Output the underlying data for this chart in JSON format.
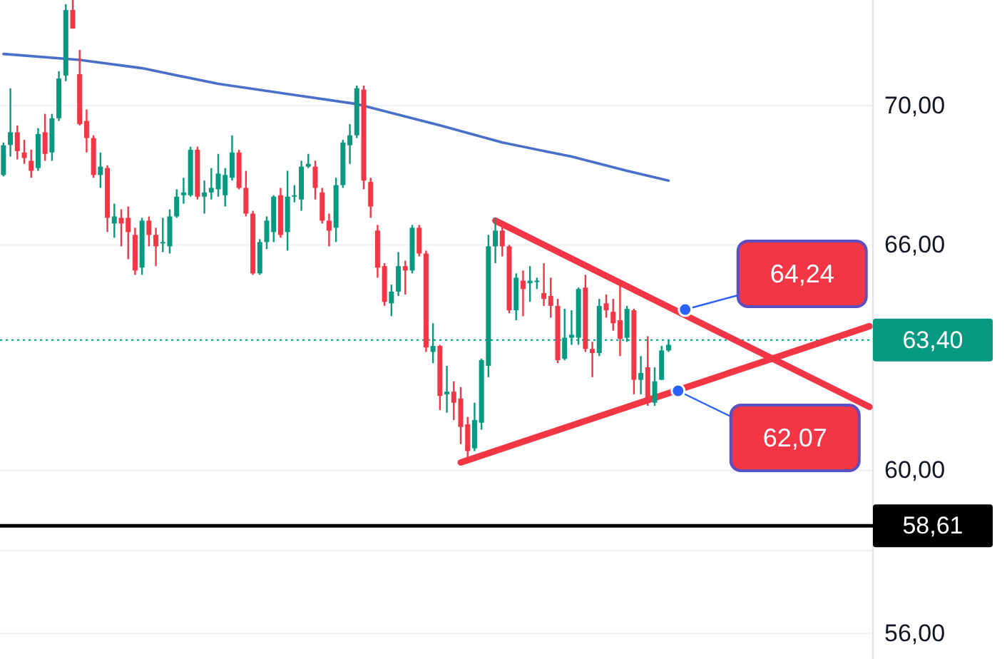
{
  "chart_data": {
    "type": "candlestick",
    "log": true,
    "grid": "y",
    "tick_labels": "y",
    "categories": [
      null,
      null,
      null,
      null,
      null,
      null,
      null,
      null,
      null,
      null,
      null,
      null,
      null,
      null,
      null,
      null,
      null,
      null,
      null,
      null,
      null,
      null,
      null,
      null,
      null,
      null,
      null,
      null,
      null,
      null,
      null,
      null,
      null,
      null,
      null,
      null,
      null,
      null,
      null,
      null,
      null,
      null,
      null,
      null,
      null,
      null,
      null,
      null,
      null,
      null,
      null,
      null,
      null,
      null,
      null,
      null,
      null,
      null,
      null,
      null,
      null,
      null,
      null,
      null,
      null,
      null,
      null,
      null,
      null,
      null,
      null,
      null,
      null,
      null,
      null,
      null,
      null,
      null,
      null,
      null,
      null,
      null,
      null,
      null,
      null,
      null,
      null,
      null,
      null,
      null,
      null,
      null,
      null,
      null,
      null,
      null,
      null,
      null,
      null,
      null,
      null,
      null,
      null,
      null,
      null,
      null,
      null,
      null,
      null,
      null,
      null,
      null,
      null,
      null,
      null,
      null,
      null,
      null,
      null,
      null,
      null,
      null,
      null,
      null,
      null,
      null
    ],
    "ylim": [
      55.4,
      73.2
    ],
    "yticks": [
      {
        "value": 56,
        "label": "56,00"
      },
      {
        "value": 58,
        "label": null
      },
      {
        "value": 60,
        "label": "60,00"
      },
      {
        "value": 66,
        "label": "66,00"
      },
      {
        "value": 70,
        "label": "70,00"
      }
    ],
    "ohlc": [
      [
        67.98,
        68.92,
        67.94,
        68.84
      ],
      [
        68.85,
        70.52,
        68.51,
        69.22
      ],
      [
        69.22,
        69.42,
        68.43,
        68.67
      ],
      [
        68.63,
        69.0,
        68.3,
        68.47
      ],
      [
        68.39,
        68.71,
        67.9,
        68.1
      ],
      [
        68.18,
        69.34,
        68.1,
        69.17
      ],
      [
        69.22,
        69.76,
        68.39,
        68.59
      ],
      [
        68.63,
        69.76,
        68.39,
        69.63
      ],
      [
        69.63,
        71.03,
        69.55,
        70.81
      ],
      [
        70.9,
        73.07,
        70.73,
        72.89
      ],
      [
        72.89,
        73.2,
        72.32,
        72.32
      ],
      [
        70.94,
        71.67,
        69.42,
        69.46
      ],
      [
        69.55,
        69.89,
        68.63,
        69.05
      ],
      [
        69.05,
        69.13,
        67.9,
        67.98
      ],
      [
        67.98,
        68.63,
        67.61,
        68.22
      ],
      [
        68.18,
        68.26,
        66.36,
        66.76
      ],
      [
        66.6,
        67.16,
        66.2,
        66.8
      ],
      [
        66.76,
        67.0,
        65.96,
        66.6
      ],
      [
        66.76,
        67.08,
        65.6,
        66.36
      ],
      [
        66.28,
        66.48,
        65.17,
        65.29
      ],
      [
        65.37,
        66.76,
        65.17,
        66.68
      ],
      [
        66.68,
        66.8,
        65.96,
        66.28
      ],
      [
        66.28,
        66.48,
        65.41,
        65.96
      ],
      [
        66.04,
        66.76,
        65.8,
        66.08
      ],
      [
        65.96,
        67.0,
        65.76,
        66.8
      ],
      [
        66.8,
        67.57,
        66.76,
        67.36
      ],
      [
        67.4,
        67.9,
        67.16,
        67.48
      ],
      [
        67.4,
        68.8,
        67.36,
        68.71
      ],
      [
        68.71,
        68.8,
        67.28,
        67.36
      ],
      [
        67.36,
        67.82,
        66.88,
        67.48
      ],
      [
        67.48,
        68.18,
        67.28,
        67.61
      ],
      [
        67.57,
        68.59,
        67.36,
        68.02
      ],
      [
        67.4,
        68.18,
        67.08,
        67.98
      ],
      [
        67.9,
        69.13,
        67.82,
        68.63
      ],
      [
        68.63,
        68.71,
        67.57,
        67.61
      ],
      [
        67.61,
        68.1,
        66.8,
        66.88
      ],
      [
        66.88,
        66.96,
        65.17,
        65.21
      ],
      [
        65.21,
        66.16,
        65.17,
        66.08
      ],
      [
        66.08,
        66.8,
        65.88,
        66.68
      ],
      [
        66.36,
        67.4,
        66.08,
        67.36
      ],
      [
        67.4,
        67.61,
        66.2,
        66.28
      ],
      [
        66.36,
        68.1,
        65.84,
        67.36
      ],
      [
        67.36,
        67.69,
        67.2,
        67.4
      ],
      [
        67.28,
        68.39,
        66.96,
        68.22
      ],
      [
        68.22,
        68.59,
        68.18,
        68.3
      ],
      [
        68.22,
        68.39,
        67.28,
        67.61
      ],
      [
        67.48,
        67.61,
        66.6,
        66.68
      ],
      [
        66.68,
        66.88,
        65.96,
        66.4
      ],
      [
        66.48,
        67.9,
        66.08,
        67.69
      ],
      [
        67.69,
        69.0,
        67.61,
        68.92
      ],
      [
        68.84,
        69.46,
        68.3,
        69.13
      ],
      [
        69.13,
        70.6,
        69.05,
        70.52
      ],
      [
        70.48,
        70.6,
        67.57,
        67.82
      ],
      [
        67.78,
        67.9,
        66.76,
        67.08
      ],
      [
        66.4,
        66.56,
        65.09,
        65.37
      ],
      [
        65.41,
        65.49,
        64.32,
        64.43
      ],
      [
        64.39,
        64.9,
        64.04,
        64.71
      ],
      [
        64.71,
        65.8,
        64.59,
        65.41
      ],
      [
        65.41,
        65.56,
        64.63,
        65.29
      ],
      [
        65.29,
        66.56,
        65.21,
        66.48
      ],
      [
        66.48,
        66.56,
        65.68,
        65.76
      ],
      [
        65.76,
        65.84,
        63.08,
        63.2
      ],
      [
        63.08,
        63.85,
        62.78,
        63.24
      ],
      [
        63.24,
        63.27,
        61.55,
        61.92
      ],
      [
        61.96,
        62.71,
        61.48,
        62.03
      ],
      [
        62.03,
        62.3,
        61.29,
        61.74
      ],
      [
        61.85,
        62.15,
        60.67,
        61.11
      ],
      [
        61.18,
        61.37,
        60.2,
        60.49
      ],
      [
        60.56,
        61.74,
        60.49,
        61.29
      ],
      [
        61.22,
        62.9,
        61.04,
        62.86
      ],
      [
        62.71,
        66.28,
        62.41,
        65.96
      ],
      [
        65.96,
        66.76,
        65.49,
        66.4
      ],
      [
        66.4,
        66.6,
        65.68,
        65.96
      ],
      [
        65.96,
        66.0,
        64.12,
        64.2
      ],
      [
        64.2,
        65.21,
        63.93,
        65.09
      ],
      [
        65.01,
        65.29,
        64.04,
        64.78
      ],
      [
        64.94,
        65.41,
        64.43,
        65.01
      ],
      [
        64.98,
        65.09,
        64.78,
        65.01
      ],
      [
        64.67,
        65.49,
        64.32,
        64.51
      ],
      [
        64.59,
        65.09,
        64.0,
        64.32
      ],
      [
        64.32,
        64.51,
        62.78,
        62.86
      ],
      [
        62.9,
        64.24,
        62.86,
        63.46
      ],
      [
        63.46,
        64.2,
        63.27,
        63.54
      ],
      [
        63.46,
        64.82,
        63.27,
        64.78
      ],
      [
        64.82,
        65.17,
        63.08,
        63.16
      ],
      [
        63.16,
        63.35,
        62.41,
        63.05
      ],
      [
        63.05,
        64.51,
        62.97,
        64.32
      ],
      [
        64.39,
        64.63,
        64.0,
        64.2
      ],
      [
        64.16,
        64.51,
        63.65,
        63.85
      ],
      [
        63.93,
        64.9,
        62.97,
        63.43
      ],
      [
        63.46,
        64.32,
        63.35,
        64.24
      ],
      [
        64.2,
        64.24,
        61.96,
        62.34
      ],
      [
        62.34,
        62.97,
        61.96,
        62.52
      ],
      [
        62.67,
        63.5,
        61.66,
        61.74
      ],
      [
        61.74,
        62.67,
        61.66,
        62.3
      ],
      [
        62.34,
        63.24,
        62.34,
        63.12
      ],
      [
        63.12,
        63.39,
        63.08,
        63.27
      ],
      null,
      null,
      null,
      null,
      null,
      null,
      null,
      null,
      null,
      null,
      null,
      null,
      null,
      null,
      null,
      null,
      null,
      null,
      null,
      null,
      null,
      null,
      null,
      null,
      null,
      null,
      null,
      null,
      null
    ],
    "series": [
      {
        "type": "line",
        "color": "#4a6fc9",
        "values": [
          71.55,
          null,
          null,
          null,
          null,
          null,
          null,
          null,
          null,
          null,
          null,
          71.37,
          null,
          null,
          null,
          null,
          null,
          null,
          null,
          null,
          71.12,
          null,
          null,
          null,
          null,
          null,
          null,
          null,
          null,
          null,
          null,
          70.65,
          null,
          null,
          null,
          null,
          null,
          null,
          null,
          null,
          null,
          70.35,
          null,
          null,
          null,
          null,
          null,
          null,
          null,
          null,
          null,
          70.05,
          null,
          null,
          null,
          null,
          null,
          null,
          null,
          null,
          null,
          null,
          null,
          69.42,
          null,
          null,
          null,
          null,
          null,
          null,
          null,
          null,
          68.92,
          null,
          null,
          null,
          null,
          null,
          null,
          null,
          null,
          null,
          68.51,
          null,
          null,
          null,
          null,
          null,
          null,
          null,
          68.1,
          null,
          null,
          null,
          null,
          null,
          67.82,
          null,
          null,
          null,
          null,
          null,
          null,
          null,
          null,
          null,
          null,
          null,
          null,
          null,
          null,
          null,
          null,
          null,
          null,
          null,
          null,
          null,
          null,
          null,
          null,
          null,
          null,
          null,
          null,
          null
        ]
      },
      {
        "type": "line",
        "color": "#f23645",
        "values": [
          null,
          null,
          null,
          null,
          null,
          null,
          null,
          null,
          null,
          null,
          null,
          null,
          null,
          null,
          null,
          null,
          null,
          null,
          null,
          null,
          null,
          null,
          null,
          null,
          null,
          null,
          null,
          null,
          null,
          null,
          null,
          null,
          null,
          null,
          null,
          null,
          null,
          null,
          null,
          null,
          null,
          null,
          null,
          null,
          null,
          null,
          null,
          null,
          null,
          null,
          null,
          null,
          null,
          null,
          null,
          null,
          null,
          null,
          null,
          null,
          null,
          null,
          null,
          null,
          null,
          null,
          null,
          null,
          null,
          null,
          null,
          66.68,
          null,
          null,
          null,
          null,
          null,
          null,
          null,
          null,
          null,
          null,
          null,
          null,
          null,
          null,
          null,
          null,
          null,
          null,
          null,
          null,
          null,
          null,
          null,
          null,
          null,
          null,
          null,
          null,
          null,
          null,
          null,
          null,
          null,
          null,
          null,
          null,
          null,
          null,
          null,
          null,
          null,
          null,
          null,
          null,
          null,
          null,
          null,
          null,
          null,
          null,
          null,
          null,
          null,
          61.63
        ]
      },
      {
        "type": "line",
        "color": "#f23645",
        "values": [
          null,
          null,
          null,
          null,
          null,
          null,
          null,
          null,
          null,
          null,
          null,
          null,
          null,
          null,
          null,
          null,
          null,
          null,
          null,
          null,
          null,
          null,
          null,
          null,
          null,
          null,
          null,
          null,
          null,
          null,
          null,
          null,
          null,
          null,
          null,
          null,
          null,
          null,
          null,
          null,
          null,
          null,
          null,
          null,
          null,
          null,
          null,
          null,
          null,
          null,
          null,
          null,
          null,
          null,
          null,
          null,
          null,
          null,
          null,
          null,
          null,
          null,
          null,
          null,
          null,
          null,
          60.2,
          null,
          null,
          null,
          null,
          null,
          null,
          null,
          null,
          null,
          null,
          null,
          null,
          null,
          null,
          null,
          null,
          null,
          null,
          null,
          null,
          null,
          null,
          null,
          null,
          null,
          null,
          null,
          null,
          null,
          null,
          null,
          null,
          null,
          null,
          null,
          null,
          null,
          null,
          null,
          null,
          null,
          null,
          null,
          null,
          null,
          null,
          null,
          null,
          null,
          null,
          null,
          null,
          null,
          null,
          null,
          null,
          null,
          null,
          63.77
        ]
      }
    ],
    "ref_lines": [
      {
        "axis": "y",
        "value": 63.4,
        "label": "63,40",
        "color": "#089981",
        "line_style": "dotted"
      },
      {
        "axis": "y",
        "value": 58.61,
        "label": "58,61",
        "color": "#000000",
        "line_style": "solid"
      }
    ],
    "annotations": [
      "64,24",
      "62,07"
    ]
  }
}
